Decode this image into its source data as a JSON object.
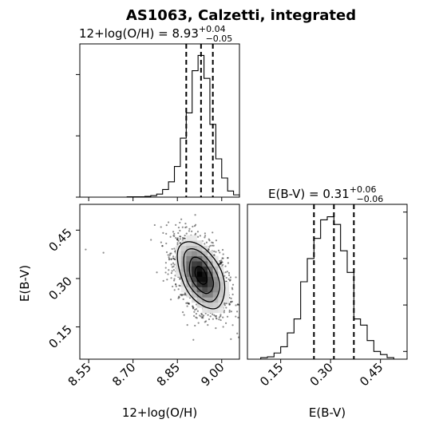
{
  "figure_title": "AS1063, Calzetti, integrated",
  "chart_data": [
    {
      "type": "histogram",
      "panel": "marginal-metallicity",
      "title_main": "12+log(O/H) = 8.93",
      "title_sup": "+0.04",
      "title_sub": "−0.05",
      "xlim": [
        8.52,
        9.06
      ],
      "quantiles": [
        8.88,
        8.93,
        8.97
      ],
      "bin_edges": [
        8.52,
        8.54,
        8.56,
        8.58,
        8.6,
        8.62,
        8.64,
        8.66,
        8.68,
        8.7,
        8.72,
        8.74,
        8.76,
        8.78,
        8.8,
        8.82,
        8.84,
        8.86,
        8.88,
        8.9,
        8.92,
        8.94,
        8.96,
        8.98,
        9.0,
        9.02,
        9.04,
        9.06
      ],
      "counts": [
        0,
        0,
        0,
        0,
        0,
        0,
        0,
        0,
        0.5,
        0.5,
        0.5,
        1,
        2,
        4,
        10,
        20,
        40,
        77,
        110,
        165,
        185,
        155,
        95,
        50,
        25,
        8,
        3
      ],
      "ymax": 200
    },
    {
      "type": "histogram",
      "panel": "marginal-ebv",
      "title_main": "E(B-V) = 0.31",
      "title_sup": "+0.06",
      "title_sub": "−0.06",
      "xlim": [
        0.05,
        0.53
      ],
      "xticks": [
        "0.15",
        "0.30",
        "0.45"
      ],
      "xtick_values": [
        0.15,
        0.3,
        0.45
      ],
      "xlabel": "E(B-V)",
      "quantiles": [
        0.25,
        0.31,
        0.37
      ],
      "bin_edges": [
        0.05,
        0.07,
        0.09,
        0.11,
        0.13,
        0.15,
        0.17,
        0.19,
        0.21,
        0.23,
        0.25,
        0.27,
        0.29,
        0.31,
        0.33,
        0.35,
        0.37,
        0.39,
        0.41,
        0.43,
        0.45,
        0.47,
        0.49,
        0.51,
        0.53
      ],
      "counts": [
        0,
        0,
        1,
        1.5,
        4,
        8,
        17,
        26,
        50,
        65,
        78,
        90,
        92,
        87,
        70,
        56,
        26,
        22,
        12,
        5,
        3,
        1,
        0,
        0
      ],
      "ymax": 100
    },
    {
      "type": "2d-density",
      "panel": "joint-metallicity-ebv",
      "xlim": [
        8.52,
        9.06
      ],
      "ylim": [
        0.05,
        0.53
      ],
      "xticks": [
        "8.55",
        "8.70",
        "8.85",
        "9.00"
      ],
      "xtick_values": [
        8.55,
        8.7,
        8.85,
        9.0
      ],
      "yticks": [
        "0.15",
        "0.30",
        "0.45"
      ],
      "ytick_values": [
        0.15,
        0.3,
        0.45
      ],
      "xlabel": "12+log(O/H)",
      "ylabel": "E(B-V)",
      "center": [
        8.93,
        0.31
      ],
      "sigma": [
        0.045,
        0.06
      ],
      "correlation": -0.45
    }
  ]
}
